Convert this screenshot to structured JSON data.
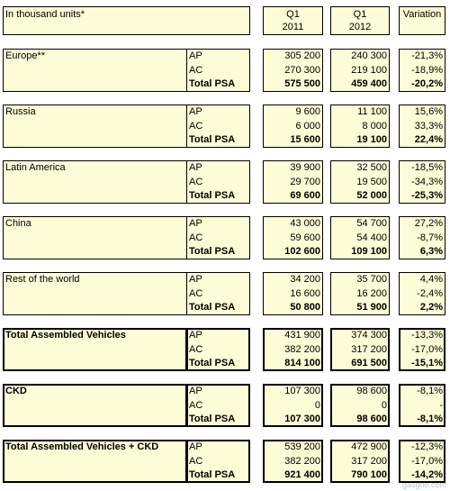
{
  "header": {
    "title": "In thousand units*",
    "q1_2011_line1": "Q1",
    "q1_2011_line2": "2011",
    "q1_2012_line1": "Q1",
    "q1_2012_line2": "2012",
    "variation": "Variation"
  },
  "sections": [
    {
      "name": "Europe**",
      "rows": [
        {
          "type": "AP",
          "q2011": "305 200",
          "q2012": "240 300",
          "var": "-21,3%"
        },
        {
          "type": "AC",
          "q2011": "270 300",
          "q2012": "219 100",
          "var": "-18,9%"
        },
        {
          "type": "Total PSA",
          "q2011": "575 500",
          "q2012": "459 400",
          "var": "-20,2%"
        }
      ]
    },
    {
      "name": "Russia",
      "rows": [
        {
          "type": "AP",
          "q2011": "9 600",
          "q2012": "11 100",
          "var": "15,6%"
        },
        {
          "type": "AC",
          "q2011": "6 000",
          "q2012": "8 000",
          "var": "33,3%"
        },
        {
          "type": "Total PSA",
          "q2011": "15 600",
          "q2012": "19 100",
          "var": "22,4%"
        }
      ]
    },
    {
      "name": "Latin America",
      "rows": [
        {
          "type": "AP",
          "q2011": "39 900",
          "q2012": "32 500",
          "var": "-18,5%"
        },
        {
          "type": "AC",
          "q2011": "29 700",
          "q2012": "19 500",
          "var": "-34,3%"
        },
        {
          "type": "Total PSA",
          "q2011": "69 600",
          "q2012": "52 000",
          "var": "-25,3%"
        }
      ]
    },
    {
      "name": "China",
      "rows": [
        {
          "type": "AP",
          "q2011": "43 000",
          "q2012": "54 700",
          "var": "27,2%"
        },
        {
          "type": "AC",
          "q2011": "59 600",
          "q2012": "54 400",
          "var": "-8,7%"
        },
        {
          "type": "Total PSA",
          "q2011": "102 600",
          "q2012": "109 100",
          "var": "6,3%"
        }
      ]
    },
    {
      "name": "Rest of the world",
      "rows": [
        {
          "type": "AP",
          "q2011": "34 200",
          "q2012": "35 700",
          "var": "4,4%"
        },
        {
          "type": "AC",
          "q2011": "16 600",
          "q2012": "16 200",
          "var": "-2,4%"
        },
        {
          "type": "Total PSA",
          "q2011": "50 800",
          "q2012": "51 900",
          "var": "2,2%"
        }
      ]
    },
    {
      "name": "Total Assembled Vehicles",
      "rows": [
        {
          "type": "AP",
          "q2011": "431 900",
          "q2012": "374 300",
          "var": "-13,3%"
        },
        {
          "type": "AC",
          "q2011": "382 200",
          "q2012": "317 200",
          "var": "-17,0%"
        },
        {
          "type": "Total PSA",
          "q2011": "814 100",
          "q2012": "691 500",
          "var": "-15,1%"
        }
      ]
    },
    {
      "name": "CKD",
      "rows": [
        {
          "type": "AP",
          "q2011": "107 300",
          "q2012": "98 600",
          "var": "-8,1%"
        },
        {
          "type": "AC",
          "q2011": "0",
          "q2012": "0",
          "var": "-"
        },
        {
          "type": "Total PSA",
          "q2011": "107 300",
          "q2012": "98 600",
          "var": "-8,1%"
        }
      ]
    },
    {
      "name": "Total Assembled Vehicles + CKD",
      "rows": [
        {
          "type": "AP",
          "q2011": "539 200",
          "q2012": "472 900",
          "var": "-12,3%"
        },
        {
          "type": "AC",
          "q2011": "382 200",
          "q2012": "317 200",
          "var": "-17,0%"
        },
        {
          "type": "Total PSA",
          "q2011": "921 400",
          "q2012": "790 100",
          "var": "-14,2%"
        }
      ]
    }
  ],
  "watermark": "gasgoo.com"
}
